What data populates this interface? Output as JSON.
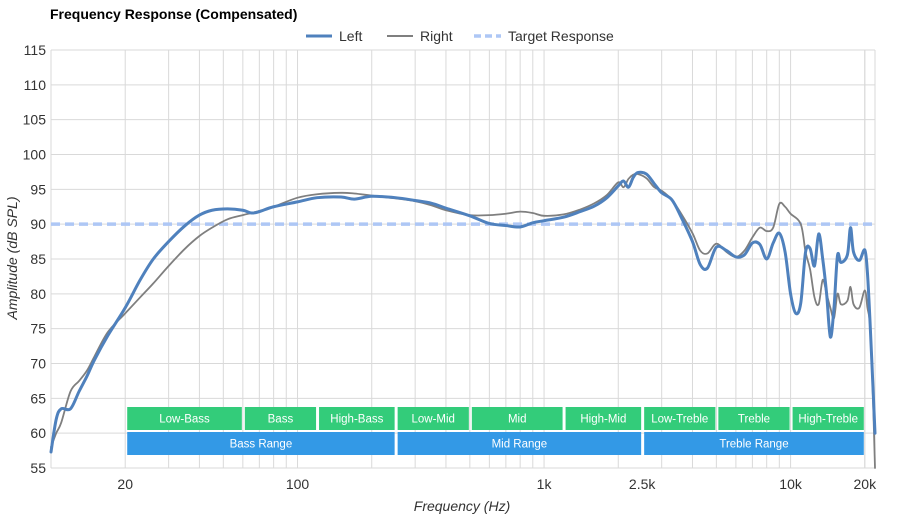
{
  "chart_data": {
    "type": "line",
    "title": "Frequency Response (Compensated)",
    "xlabel": "Frequency (Hz)",
    "ylabel": "Amplitude (dB SPL)",
    "x_scale": "log",
    "xlim": [
      10,
      22000
    ],
    "ylim": [
      55,
      115
    ],
    "x_ticks": [
      {
        "value": 20,
        "label": "20"
      },
      {
        "value": 100,
        "label": "100"
      },
      {
        "value": 1000,
        "label": "1k"
      },
      {
        "value": 2500,
        "label": "2.5k"
      },
      {
        "value": 10000,
        "label": "10k"
      },
      {
        "value": 20000,
        "label": "20k"
      }
    ],
    "y_ticks": [
      55,
      60,
      65,
      70,
      75,
      80,
      85,
      90,
      95,
      100,
      105,
      110,
      115
    ],
    "grid": true,
    "legend": {
      "position": "top-center"
    },
    "series": [
      {
        "name": "Left",
        "color": "#4f81bd",
        "style": "solid",
        "points": [
          [
            10,
            57.3
          ],
          [
            10.5,
            62
          ],
          [
            11,
            63.5
          ],
          [
            12,
            63.5
          ],
          [
            13,
            66
          ],
          [
            14,
            68.2
          ],
          [
            15,
            70.5
          ],
          [
            17,
            74
          ],
          [
            20,
            78
          ],
          [
            23,
            82
          ],
          [
            26,
            85
          ],
          [
            30,
            87.5
          ],
          [
            35,
            89.8
          ],
          [
            40,
            91.3
          ],
          [
            45,
            92
          ],
          [
            52,
            92.2
          ],
          [
            60,
            92
          ],
          [
            65,
            91.6
          ],
          [
            70,
            91.8
          ],
          [
            80,
            92.5
          ],
          [
            100,
            93.2
          ],
          [
            120,
            93.8
          ],
          [
            150,
            93.9
          ],
          [
            170,
            93.6
          ],
          [
            200,
            94
          ],
          [
            250,
            93.8
          ],
          [
            300,
            93.4
          ],
          [
            350,
            93
          ],
          [
            400,
            92.3
          ],
          [
            500,
            91.2
          ],
          [
            600,
            90.1
          ],
          [
            700,
            89.8
          ],
          [
            800,
            89.6
          ],
          [
            900,
            90.2
          ],
          [
            1000,
            90.5
          ],
          [
            1200,
            91
          ],
          [
            1400,
            91.8
          ],
          [
            1600,
            92.6
          ],
          [
            1800,
            93.8
          ],
          [
            2000,
            95.5
          ],
          [
            2100,
            96.2
          ],
          [
            2200,
            95.3
          ],
          [
            2300,
            96.7
          ],
          [
            2400,
            97.4
          ],
          [
            2600,
            97.2
          ],
          [
            2800,
            95.8
          ],
          [
            3000,
            94.5
          ],
          [
            3300,
            93.5
          ],
          [
            3600,
            91
          ],
          [
            4000,
            87.5
          ],
          [
            4300,
            84.2
          ],
          [
            4600,
            83.7
          ],
          [
            5000,
            86.7
          ],
          [
            5500,
            86.2
          ],
          [
            6000,
            85.3
          ],
          [
            6500,
            85.6
          ],
          [
            7000,
            87.3
          ],
          [
            7500,
            87.1
          ],
          [
            8000,
            85
          ],
          [
            8500,
            87.3
          ],
          [
            9000,
            88.7
          ],
          [
            9500,
            86
          ],
          [
            10000,
            80
          ],
          [
            10500,
            77.2
          ],
          [
            11000,
            78.7
          ],
          [
            11500,
            86
          ],
          [
            12000,
            86.5
          ],
          [
            12500,
            84
          ],
          [
            13000,
            88.6
          ],
          [
            13500,
            85
          ],
          [
            14000,
            80
          ],
          [
            14500,
            73.8
          ],
          [
            15000,
            78
          ],
          [
            15500,
            85.5
          ],
          [
            16000,
            84.5
          ],
          [
            17000,
            85.6
          ],
          [
            17500,
            89.5
          ],
          [
            18000,
            86
          ],
          [
            19000,
            84.8
          ],
          [
            20000,
            86.3
          ],
          [
            20500,
            83
          ],
          [
            21000,
            76
          ],
          [
            21500,
            68
          ],
          [
            22000,
            60
          ]
        ]
      },
      {
        "name": "Right",
        "color": "#7f7f7f",
        "style": "solid",
        "points": [
          [
            10,
            58
          ],
          [
            10.5,
            60
          ],
          [
            11,
            61.5
          ],
          [
            12,
            66
          ],
          [
            13,
            67.5
          ],
          [
            14,
            69
          ],
          [
            15,
            71
          ],
          [
            17,
            74.5
          ],
          [
            20,
            77.2
          ],
          [
            23,
            79.5
          ],
          [
            26,
            81.5
          ],
          [
            30,
            84
          ],
          [
            35,
            86.5
          ],
          [
            40,
            88.3
          ],
          [
            45,
            89.5
          ],
          [
            52,
            90.7
          ],
          [
            60,
            91.3
          ],
          [
            65,
            91.6
          ],
          [
            70,
            91.9
          ],
          [
            80,
            92.5
          ],
          [
            100,
            93.8
          ],
          [
            120,
            94.3
          ],
          [
            150,
            94.5
          ],
          [
            170,
            94.4
          ],
          [
            200,
            94.1
          ],
          [
            250,
            93.7
          ],
          [
            300,
            93.3
          ],
          [
            350,
            92.7
          ],
          [
            400,
            92
          ],
          [
            500,
            91.3
          ],
          [
            600,
            91.3
          ],
          [
            700,
            91.5
          ],
          [
            800,
            91.8
          ],
          [
            900,
            91.6
          ],
          [
            1000,
            91.2
          ],
          [
            1200,
            91.4
          ],
          [
            1400,
            92.1
          ],
          [
            1600,
            93
          ],
          [
            1800,
            94.2
          ],
          [
            2000,
            96
          ],
          [
            2100,
            95.3
          ],
          [
            2200,
            96.5
          ],
          [
            2300,
            97.1
          ],
          [
            2400,
            97.2
          ],
          [
            2600,
            96.6
          ],
          [
            2800,
            95.3
          ],
          [
            3000,
            94.8
          ],
          [
            3300,
            93.5
          ],
          [
            3600,
            91.5
          ],
          [
            4000,
            88.7
          ],
          [
            4300,
            86.2
          ],
          [
            4600,
            85.8
          ],
          [
            5000,
            87.2
          ],
          [
            5500,
            86
          ],
          [
            6000,
            85.3
          ],
          [
            6500,
            86.2
          ],
          [
            7000,
            88.1
          ],
          [
            7500,
            89.5
          ],
          [
            8000,
            89
          ],
          [
            8500,
            89.5
          ],
          [
            9000,
            92.9
          ],
          [
            9500,
            92.5
          ],
          [
            10000,
            91.5
          ],
          [
            11000,
            90
          ],
          [
            11500,
            86
          ],
          [
            12000,
            83.5
          ],
          [
            12500,
            79.5
          ],
          [
            13000,
            78.5
          ],
          [
            13500,
            82
          ],
          [
            14000,
            80
          ],
          [
            14500,
            78
          ],
          [
            15000,
            76.5
          ],
          [
            15500,
            80
          ],
          [
            16000,
            78.5
          ],
          [
            17000,
            79
          ],
          [
            17500,
            81
          ],
          [
            18000,
            78.5
          ],
          [
            19000,
            78
          ],
          [
            20000,
            80.5
          ],
          [
            20500,
            78
          ],
          [
            21000,
            75.5
          ],
          [
            21500,
            67
          ],
          [
            22000,
            55
          ]
        ]
      },
      {
        "name": "Target Response",
        "color": "#aec7f5",
        "style": "dashed",
        "points": [
          [
            10,
            90
          ],
          [
            22000,
            90
          ]
        ]
      }
    ],
    "bands": [
      {
        "label": "Low-Bass",
        "from": 20,
        "to": 60
      },
      {
        "label": "Bass",
        "from": 60,
        "to": 120
      },
      {
        "label": "High-Bass",
        "from": 120,
        "to": 250
      },
      {
        "label": "Low-Mid",
        "from": 250,
        "to": 500
      },
      {
        "label": "Mid",
        "from": 500,
        "to": 1200
      },
      {
        "label": "High-Mid",
        "from": 1200,
        "to": 2500
      },
      {
        "label": "Low-Treble",
        "from": 2500,
        "to": 5000
      },
      {
        "label": "Treble",
        "from": 5000,
        "to": 10000
      },
      {
        "label": "High-Treble",
        "from": 10000,
        "to": 20000
      }
    ],
    "ranges": [
      {
        "label": "Bass Range",
        "from": 20,
        "to": 250
      },
      {
        "label": "Mid Range",
        "from": 250,
        "to": 2500
      },
      {
        "label": "Treble Range",
        "from": 2500,
        "to": 20000
      }
    ],
    "band_color": "#33cc7a",
    "range_color": "#3399e6"
  }
}
